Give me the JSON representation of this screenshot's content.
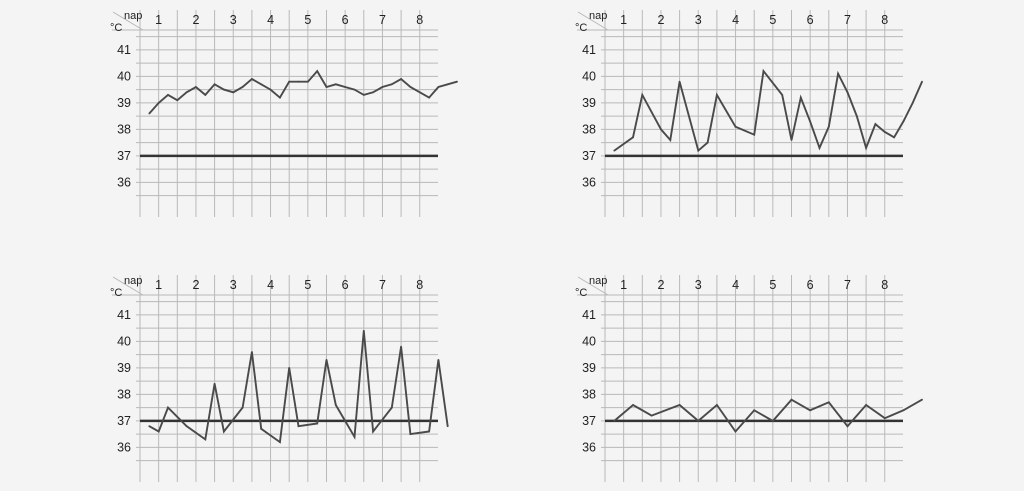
{
  "chart_data": [
    {
      "type": "line",
      "x_label": "nap",
      "y_label": "°C",
      "day_labels": [
        "1",
        "2",
        "3",
        "4",
        "5",
        "6",
        "7",
        "8"
      ],
      "y_ticks": [
        41,
        40,
        39,
        38,
        37,
        36
      ],
      "ylim": [
        35.1,
        42.0
      ],
      "reference_line": 37,
      "grid": true,
      "x": [
        0.25,
        0.5,
        0.75,
        1,
        1.25,
        1.5,
        1.75,
        2,
        2.25,
        2.5,
        2.75,
        3,
        3.25,
        3.5,
        3.75,
        4,
        4.25,
        4.5,
        4.75,
        5,
        5.25,
        5.5,
        5.75,
        6,
        6.25,
        6.5,
        6.75,
        7,
        7.25,
        7.5,
        7.75,
        8,
        8.25,
        8.5
      ],
      "values": [
        38.6,
        39.0,
        39.3,
        39.1,
        39.4,
        39.6,
        39.3,
        39.7,
        39.5,
        39.4,
        39.6,
        39.9,
        39.7,
        39.5,
        39.2,
        39.8,
        39.8,
        39.8,
        40.2,
        39.6,
        39.7,
        39.6,
        39.5,
        39.3,
        39.4,
        39.6,
        39.7,
        39.9,
        39.6,
        39.4,
        39.2,
        39.6,
        39.7,
        39.8
      ]
    },
    {
      "type": "line",
      "x_label": "nap",
      "y_label": "°C",
      "day_labels": [
        "1",
        "2",
        "3",
        "4",
        "5",
        "6",
        "7",
        "8"
      ],
      "y_ticks": [
        41,
        40,
        39,
        38,
        37,
        36
      ],
      "ylim": [
        35.1,
        42.0
      ],
      "reference_line": 37,
      "grid": true,
      "x": [
        0.25,
        0.75,
        1.0,
        1.5,
        1.75,
        2.0,
        2.5,
        2.75,
        3.0,
        3.5,
        4.0,
        4.25,
        4.75,
        5.0,
        5.25,
        5.5,
        5.75,
        6.0,
        6.25,
        6.5,
        6.75,
        7.0,
        7.25,
        7.5,
        7.75,
        8.0,
        8.25,
        8.5
      ],
      "values": [
        37.2,
        37.7,
        39.3,
        38.0,
        37.6,
        39.8,
        37.2,
        37.5,
        39.3,
        38.1,
        37.8,
        40.2,
        39.3,
        37.6,
        39.2,
        38.3,
        37.3,
        38.1,
        40.1,
        39.4,
        38.5,
        37.3,
        38.2,
        37.9,
        37.7,
        38.3,
        39.0,
        39.8
      ]
    },
    {
      "type": "line",
      "x_label": "nap",
      "y_label": "°C",
      "day_labels": [
        "1",
        "2",
        "3",
        "4",
        "5",
        "6",
        "7",
        "8"
      ],
      "y_ticks": [
        41,
        40,
        39,
        38,
        37,
        36
      ],
      "ylim": [
        35.1,
        42.0
      ],
      "reference_line": 37,
      "grid": true,
      "x": [
        0.25,
        0.5,
        0.75,
        1.25,
        1.75,
        2.0,
        2.25,
        2.75,
        3.0,
        3.25,
        3.75,
        4.0,
        4.25,
        4.75,
        5.0,
        5.25,
        5.75,
        6.0,
        6.25,
        6.75,
        7.0,
        7.25,
        7.75,
        8.0,
        8.25
      ],
      "values": [
        36.8,
        36.6,
        37.5,
        36.8,
        36.3,
        38.4,
        36.6,
        37.5,
        39.6,
        36.7,
        36.2,
        39.0,
        36.8,
        36.9,
        39.3,
        37.6,
        36.4,
        40.4,
        36.6,
        37.5,
        39.8,
        36.5,
        36.6,
        39.3,
        36.8
      ]
    },
    {
      "type": "line",
      "x_label": "nap",
      "y_label": "°C",
      "day_labels": [
        "1",
        "2",
        "3",
        "4",
        "5",
        "6",
        "7",
        "8"
      ],
      "y_ticks": [
        41,
        40,
        39,
        38,
        37,
        36
      ],
      "ylim": [
        35.1,
        42.0
      ],
      "reference_line": 37,
      "grid": true,
      "x": [
        0.25,
        0.75,
        1.25,
        2.0,
        2.5,
        3.0,
        3.5,
        4.0,
        4.5,
        5.0,
        5.5,
        6.0,
        6.5,
        7.0,
        7.5,
        8.0,
        8.5
      ],
      "values": [
        37.0,
        37.6,
        37.2,
        37.6,
        37.0,
        37.6,
        36.6,
        37.4,
        37.0,
        37.8,
        37.4,
        37.7,
        36.8,
        37.6,
        37.1,
        37.4,
        37.8
      ]
    }
  ]
}
